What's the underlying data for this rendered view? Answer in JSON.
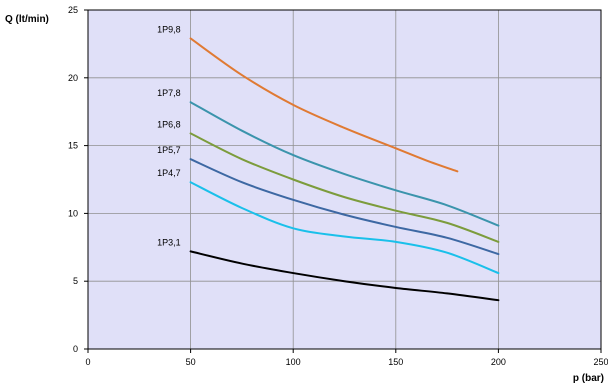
{
  "chart_data": {
    "type": "line",
    "title": "",
    "xlabel": "p (bar)",
    "ylabel": "Q (lt/min)",
    "xlim": [
      0,
      250
    ],
    "ylim": [
      0,
      25
    ],
    "xticks": [
      0,
      50,
      100,
      150,
      200,
      250
    ],
    "yticks": [
      0,
      5,
      10,
      15,
      20,
      25
    ],
    "grid": true,
    "legend": "none",
    "colors": {
      "plot_background": "#e0e0f8",
      "grid": "#909090",
      "axis": "#000000"
    },
    "series": [
      {
        "name": "1P9,8",
        "color": "#e07a33",
        "x": [
          50,
          75,
          100,
          125,
          150,
          165,
          180
        ],
        "y": [
          22.9,
          20.2,
          18.0,
          16.3,
          14.8,
          13.9,
          13.1
        ]
      },
      {
        "name": "1P7,8",
        "color": "#3b94ac",
        "x": [
          50,
          75,
          100,
          125,
          150,
          175,
          200
        ],
        "y": [
          18.2,
          16.1,
          14.3,
          12.9,
          11.7,
          10.6,
          9.1
        ]
      },
      {
        "name": "1P6,8",
        "color": "#7c9c3c",
        "x": [
          50,
          75,
          100,
          125,
          150,
          175,
          200
        ],
        "y": [
          15.9,
          14.0,
          12.5,
          11.2,
          10.2,
          9.3,
          7.9
        ]
      },
      {
        "name": "1P5,7",
        "color": "#3d68a3",
        "x": [
          50,
          75,
          100,
          125,
          150,
          175,
          200
        ],
        "y": [
          14.0,
          12.3,
          11.0,
          9.9,
          9.0,
          8.2,
          7.0
        ]
      },
      {
        "name": "1P4,7",
        "color": "#1ac0ea",
        "x": [
          50,
          75,
          100,
          125,
          150,
          175,
          200
        ],
        "y": [
          12.3,
          10.4,
          8.9,
          8.3,
          7.9,
          7.1,
          5.6
        ]
      },
      {
        "name": "1P3,1",
        "color": "#000000",
        "x": [
          50,
          75,
          100,
          125,
          150,
          175,
          200
        ],
        "y": [
          7.2,
          6.3,
          5.6,
          5.0,
          4.5,
          4.1,
          3.6
        ]
      }
    ]
  }
}
